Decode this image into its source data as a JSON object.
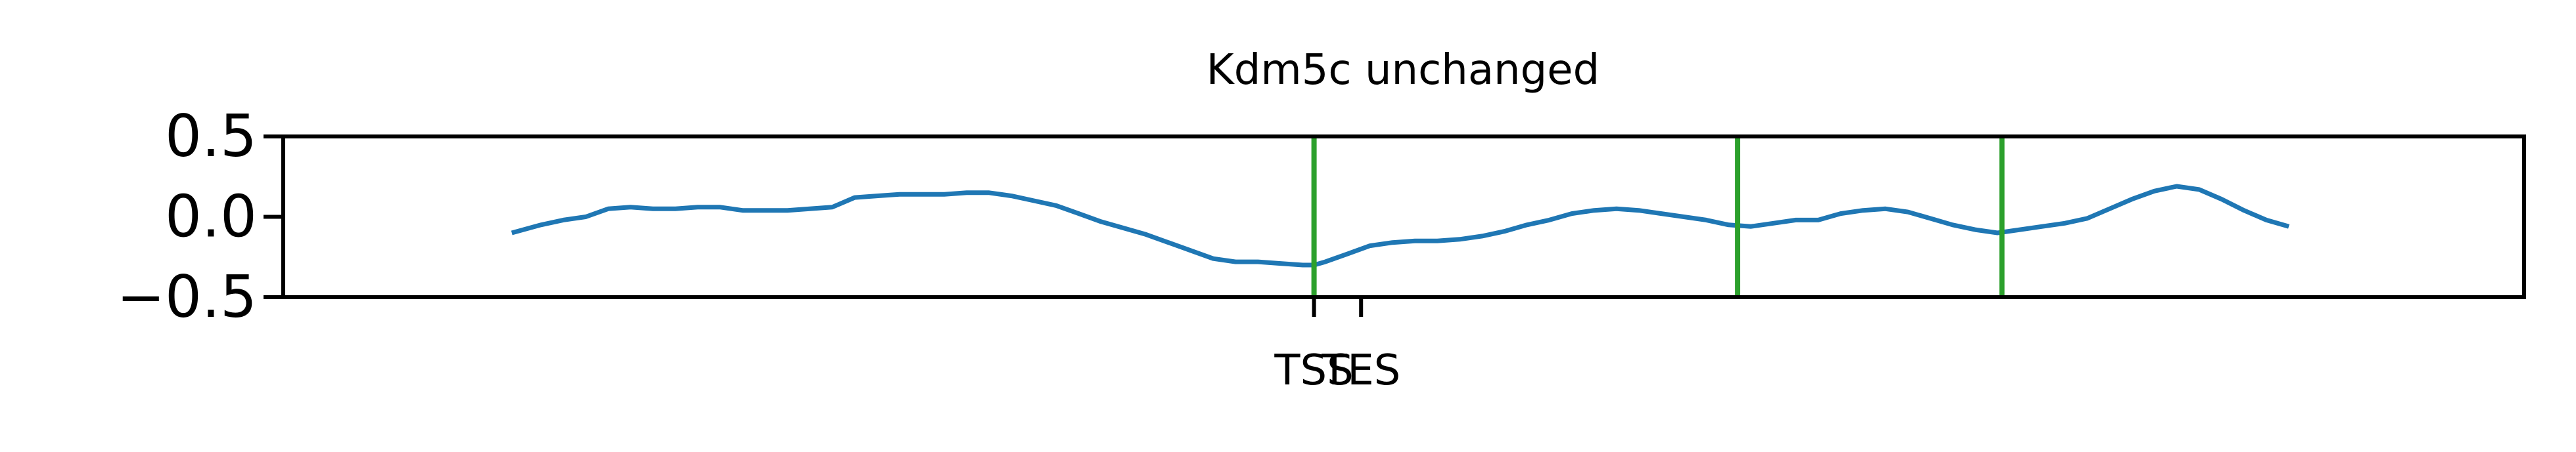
{
  "chart_data": {
    "type": "line",
    "title": "Kdm5c unchanged",
    "xlabel": "",
    "ylabel": "",
    "ylim": [
      -0.5,
      0.5
    ],
    "yticks": [
      0.5,
      0.0,
      -0.5
    ],
    "ytick_labels": [
      "0.5",
      "0.0",
      "−0.5"
    ],
    "xlim": [
      0,
      100
    ],
    "xticks": [
      {
        "x": 46,
        "label": "TSS"
      },
      {
        "x": 48.1,
        "label": "TES"
      }
    ],
    "vlines": [
      46,
      64.9,
      76.7
    ],
    "grid": false,
    "colors": {
      "line": "#1f77b4",
      "vline": "#2ca02c",
      "axis": "#000000"
    },
    "series": [
      {
        "values": [
          [
            10.2,
            -0.1
          ],
          [
            11.5,
            -0.05
          ],
          [
            12.5,
            -0.02
          ],
          [
            13.5,
            0.0
          ],
          [
            14.5,
            0.05
          ],
          [
            15.5,
            0.06
          ],
          [
            16.5,
            0.05
          ],
          [
            17.5,
            0.05
          ],
          [
            18.5,
            0.06
          ],
          [
            19.5,
            0.06
          ],
          [
            20.5,
            0.04
          ],
          [
            21.5,
            0.04
          ],
          [
            22.5,
            0.04
          ],
          [
            23.5,
            0.05
          ],
          [
            24.5,
            0.06
          ],
          [
            25.5,
            0.12
          ],
          [
            26.5,
            0.13
          ],
          [
            27.5,
            0.14
          ],
          [
            28.5,
            0.14
          ],
          [
            29.5,
            0.14
          ],
          [
            30.5,
            0.15
          ],
          [
            31.5,
            0.15
          ],
          [
            32.5,
            0.13
          ],
          [
            33.5,
            0.1
          ],
          [
            34.5,
            0.07
          ],
          [
            35.5,
            0.02
          ],
          [
            36.5,
            -0.03
          ],
          [
            37.5,
            -0.07
          ],
          [
            38.5,
            -0.11
          ],
          [
            39.5,
            -0.16
          ],
          [
            40.5,
            -0.21
          ],
          [
            41.5,
            -0.26
          ],
          [
            42.5,
            -0.28
          ],
          [
            43.5,
            -0.28
          ],
          [
            44.5,
            -0.29
          ],
          [
            45.5,
            -0.3
          ],
          [
            46.0,
            -0.3
          ],
          [
            46.5,
            -0.28
          ],
          [
            47.5,
            -0.23
          ],
          [
            48.5,
            -0.18
          ],
          [
            49.5,
            -0.16
          ],
          [
            50.5,
            -0.15
          ],
          [
            51.5,
            -0.15
          ],
          [
            52.5,
            -0.14
          ],
          [
            53.5,
            -0.12
          ],
          [
            54.5,
            -0.09
          ],
          [
            55.5,
            -0.05
          ],
          [
            56.5,
            -0.02
          ],
          [
            57.5,
            0.02
          ],
          [
            58.5,
            0.04
          ],
          [
            59.5,
            0.05
          ],
          [
            60.5,
            0.04
          ],
          [
            61.5,
            0.02
          ],
          [
            62.5,
            0.0
          ],
          [
            63.5,
            -0.02
          ],
          [
            64.5,
            -0.05
          ],
          [
            65.5,
            -0.06
          ],
          [
            66.5,
            -0.04
          ],
          [
            67.5,
            -0.02
          ],
          [
            68.5,
            -0.02
          ],
          [
            69.5,
            0.02
          ],
          [
            70.5,
            0.04
          ],
          [
            71.5,
            0.05
          ],
          [
            72.5,
            0.03
          ],
          [
            73.5,
            -0.01
          ],
          [
            74.5,
            -0.05
          ],
          [
            75.5,
            -0.08
          ],
          [
            76.5,
            -0.1
          ],
          [
            77.5,
            -0.08
          ],
          [
            78.5,
            -0.06
          ],
          [
            79.5,
            -0.04
          ],
          [
            80.5,
            -0.01
          ],
          [
            81.5,
            0.05
          ],
          [
            82.5,
            0.11
          ],
          [
            83.5,
            0.16
          ],
          [
            84.5,
            0.19
          ],
          [
            85.5,
            0.17
          ],
          [
            86.5,
            0.11
          ],
          [
            87.5,
            0.04
          ],
          [
            88.5,
            -0.02
          ],
          [
            89.5,
            -0.06
          ]
        ]
      }
    ]
  }
}
